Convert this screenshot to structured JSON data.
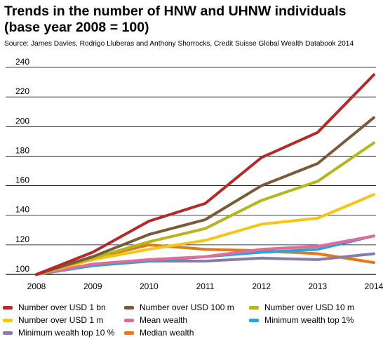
{
  "chart_data": {
    "type": "line",
    "title": "Trends in the number of HNW and UHNW individuals (base year 2008 = 100)",
    "source": "Source: James Davies, Rodrigo Lluberas and Anthony Shorrocks, Credit Suisse Global Wealth Databook 2014",
    "x": [
      "2008",
      "2009",
      "2010",
      "2011",
      "2012",
      "2013",
      "2014"
    ],
    "ylim": [
      100,
      240
    ],
    "yticks": [
      100,
      120,
      140,
      160,
      180,
      200,
      220,
      240
    ],
    "grid": true,
    "legend_position": "bottom",
    "series": [
      {
        "name": "Number over USD 1 bn",
        "color": "#b22a2a",
        "values": [
          100,
          115,
          136,
          148,
          179,
          196,
          235
        ]
      },
      {
        "name": "Number over USD 100 m",
        "color": "#7b5a3a",
        "values": [
          100,
          112,
          127,
          137,
          160,
          175,
          206
        ]
      },
      {
        "name": "Number over USD 10 m",
        "color": "#b5b51c",
        "values": [
          100,
          111,
          122,
          131,
          150,
          163,
          189
        ]
      },
      {
        "name": "Number over USD 1 m",
        "color": "#f5c518",
        "values": [
          100,
          110,
          117,
          123,
          134,
          138,
          154
        ]
      },
      {
        "name": "Mean wealth",
        "color": "#e46a98",
        "values": [
          100,
          107,
          110,
          112,
          117,
          119,
          126
        ]
      },
      {
        "name": "Minimum wealth top 1%",
        "color": "#2ca3d8",
        "values": [
          100,
          106,
          109,
          112,
          115,
          117,
          126
        ]
      },
      {
        "name": "Minimum wealth top 10 %",
        "color": "#8a7aa6",
        "values": [
          100,
          106,
          109,
          109,
          111,
          110,
          114
        ]
      },
      {
        "name": "Median wealth",
        "color": "#e07a1b",
        "values": [
          100,
          111,
          120,
          117,
          116,
          114,
          108
        ]
      }
    ]
  }
}
